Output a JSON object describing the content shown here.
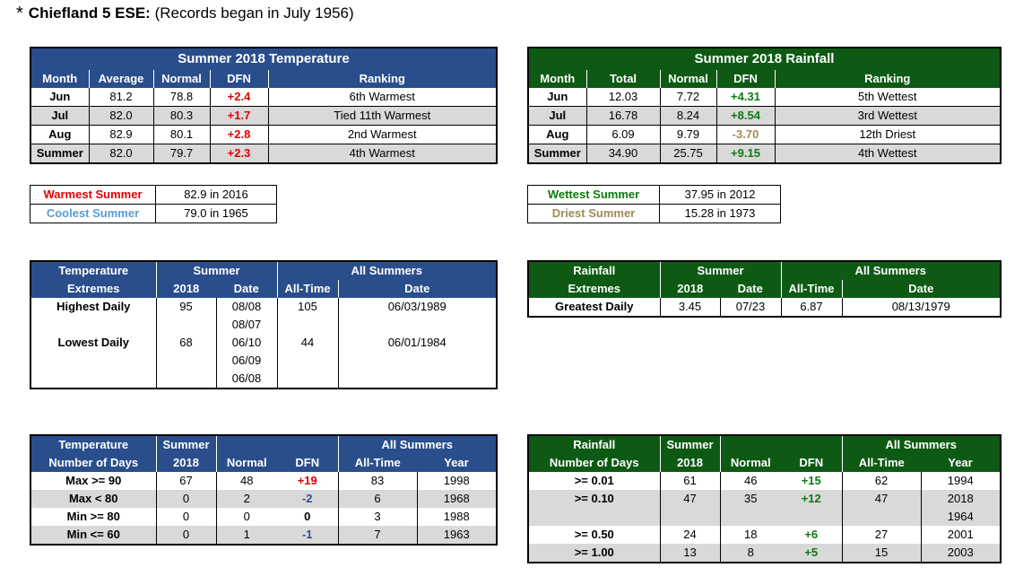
{
  "header": {
    "star": "*",
    "station": "Chiefland 5 ESE:",
    "note": "(Records began in July 1956)"
  },
  "temp_summary": {
    "title": "Summer 2018 Temperature",
    "cols": [
      "Month",
      "Average",
      "Normal",
      "DFN",
      "Ranking"
    ],
    "rows": [
      [
        "Jun",
        "81.2",
        "78.8",
        "+2.4",
        "6th Warmest"
      ],
      [
        "Jul",
        "82.0",
        "80.3",
        "+1.7",
        "Tied 11th Warmest"
      ],
      [
        "Aug",
        "82.9",
        "80.1",
        "+2.8",
        "2nd Warmest"
      ],
      [
        "Summer",
        "82.0",
        "79.7",
        "+2.3",
        "4th Warmest"
      ]
    ]
  },
  "rain_summary": {
    "title": "Summer 2018 Rainfall",
    "cols": [
      "Month",
      "Total",
      "Normal",
      "DFN",
      "Ranking"
    ],
    "rows": [
      [
        "Jun",
        "12.03",
        "7.72",
        "+4.31",
        "5th Wettest"
      ],
      [
        "Jul",
        "16.78",
        "8.24",
        "+8.54",
        "3rd Wettest"
      ],
      [
        "Aug",
        "6.09",
        "9.79",
        "-3.70",
        "12th Driest"
      ],
      [
        "Summer",
        "34.90",
        "25.75",
        "+9.15",
        "4th Wettest"
      ]
    ]
  },
  "temp_records": {
    "warmest_label": "Warmest Summer",
    "warmest_value": "82.9 in 2016",
    "coolest_label": "Coolest Summer",
    "coolest_value": "79.0 in 1965"
  },
  "rain_records": {
    "wettest_label": "Wettest Summer",
    "wettest_value": "37.95 in 2012",
    "driest_label": "Driest Summer",
    "driest_value": "15.28 in 1973"
  },
  "temp_extremes": {
    "h1": "Temperature",
    "h1b": "Extremes",
    "h2": "Summer",
    "h2a": "2018",
    "h2b": "Date",
    "h3": "All Summers",
    "h3a": "All-Time",
    "h3b": "Date",
    "high_label": "Highest Daily",
    "high_val": "95",
    "high_dates": [
      "08/08",
      "08/07"
    ],
    "high_alltime": "105",
    "high_alldate": "06/03/1989",
    "low_label": "Lowest Daily",
    "low_val": "68",
    "low_dates": [
      "06/10",
      "06/09",
      "06/08"
    ],
    "low_alltime": "44",
    "low_alldate": "06/01/1984"
  },
  "rain_extremes": {
    "h1": "Rainfall",
    "h1b": "Extremes",
    "h2": "Summer",
    "h2a": "2018",
    "h2b": "Date",
    "h3": "All Summers",
    "h3a": "All-Time",
    "h3b": "Date",
    "label": "Greatest Daily",
    "val": "3.45",
    "date": "07/23",
    "alltime": "6.87",
    "alldate": "08/13/1979"
  },
  "temp_days": {
    "h1": "Temperature",
    "h1b": "Number of Days",
    "h2": "Summer",
    "h2a": "2018",
    "hn": "Normal",
    "hd": "DFN",
    "h3": "All Summers",
    "h3a": "All-Time",
    "h3b": "Year",
    "rows": [
      [
        "Max >= 90",
        "67",
        "48",
        "+19",
        "83",
        "1998"
      ],
      [
        "Max < 80",
        "0",
        "2",
        "-2",
        "6",
        "1968"
      ],
      [
        "Min >= 80",
        "0",
        "0",
        "0",
        "3",
        "1988"
      ],
      [
        "Min <= 60",
        "0",
        "1",
        "-1",
        "7",
        "1963"
      ]
    ]
  },
  "rain_days": {
    "h1": "Rainfall",
    "h1b": "Number of Days",
    "h2": "Summer",
    "h2a": "2018",
    "hn": "Normal",
    "hd": "DFN",
    "h3": "All Summers",
    "h3a": "All-Time",
    "h3b": "Year",
    "rows": [
      [
        ">= 0.01",
        "61",
        "46",
        "+15",
        "62",
        "1994"
      ],
      [
        ">= 0.10",
        "47",
        "35",
        "+12",
        "47",
        "2018"
      ],
      [
        "",
        "",
        "",
        "",
        "",
        "1964"
      ],
      [
        ">= 0.50",
        "24",
        "18",
        "+6",
        "27",
        "2001"
      ],
      [
        ">= 1.00",
        "13",
        "8",
        "+5",
        "15",
        "2003"
      ]
    ]
  }
}
